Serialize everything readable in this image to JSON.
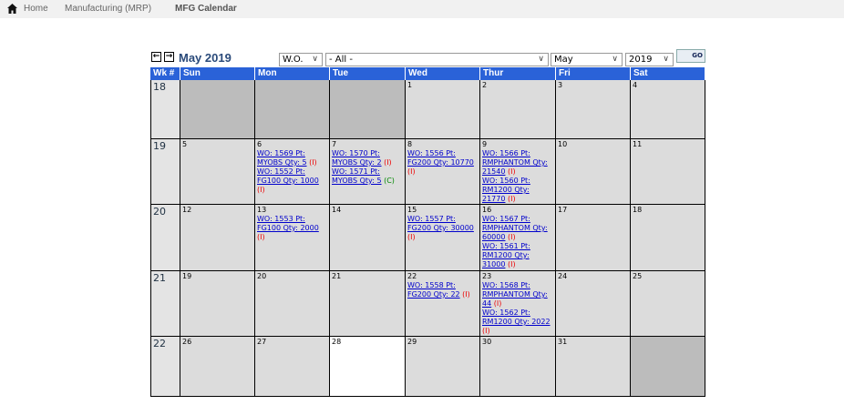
{
  "breadcrumb": [
    {
      "label": "Home",
      "icon": "home-icon"
    },
    {
      "label": "Manufacturing (MRP)"
    },
    {
      "label": "MFG Calendar"
    }
  ],
  "toolbar": {
    "title": "May 2019",
    "prev_icon": "arrow-left-icon",
    "next_icon": "arrow-right-icon",
    "type_select": "W.O.",
    "filter_select": "- All -",
    "month_select": "May",
    "year_select": "2019",
    "go_label": "GO"
  },
  "columns": [
    "Wk #",
    "Sun",
    "Mon",
    "Tue",
    "Wed",
    "Thur",
    "Fri",
    "Sat"
  ],
  "colors": {
    "header": "#2a62d8",
    "in_month": "#dcdcdc",
    "out_month": "#bcbcbc",
    "today": "#ffffff",
    "status_I": "#e00000",
    "status_C": "#008800"
  },
  "weeks": [
    {
      "wk": "18",
      "days": [
        {
          "d": "",
          "s": "out"
        },
        {
          "d": "",
          "s": "out"
        },
        {
          "d": "",
          "s": "out"
        },
        {
          "d": "1"
        },
        {
          "d": "2"
        },
        {
          "d": "3"
        },
        {
          "d": "4"
        }
      ]
    },
    {
      "wk": "19",
      "days": [
        {
          "d": "5"
        },
        {
          "d": "6",
          "orders": [
            {
              "text": "WO: 1569 Pt: MYOBS Qty: 5",
              "status": "I"
            },
            {
              "text": "WO: 1552 Pt: FG100 Qty: 1000",
              "status": "I"
            }
          ]
        },
        {
          "d": "7",
          "orders": [
            {
              "text": "WO: 1570 Pt: MYOBS Qty: 2",
              "status": "I"
            },
            {
              "text": "WO: 1571 Pt: MYOBS Qty: 5",
              "status": "C"
            }
          ]
        },
        {
          "d": "8",
          "orders": [
            {
              "text": "WO: 1556 Pt: FG200 Qty: 10770",
              "status": "I"
            }
          ]
        },
        {
          "d": "9",
          "orders": [
            {
              "text": "WO: 1566 Pt: RMPHANTOM Qty: 21540",
              "status": "I"
            },
            {
              "text": "WO: 1560 Pt: RM1200 Qty: 21770",
              "status": "I"
            }
          ]
        },
        {
          "d": "10"
        },
        {
          "d": "11"
        }
      ]
    },
    {
      "wk": "20",
      "days": [
        {
          "d": "12"
        },
        {
          "d": "13",
          "orders": [
            {
              "text": "WO: 1553 Pt: FG100 Qty: 2000",
              "status": "I"
            }
          ]
        },
        {
          "d": "14"
        },
        {
          "d": "15",
          "orders": [
            {
              "text": "WO: 1557 Pt: FG200 Qty: 30000",
              "status": "I"
            }
          ]
        },
        {
          "d": "16",
          "orders": [
            {
              "text": "WO: 1567 Pt: RMPHANTOM Qty: 60000",
              "status": "I"
            },
            {
              "text": "WO: 1561 Pt: RM1200 Qty: 31000",
              "status": "I"
            }
          ]
        },
        {
          "d": "17"
        },
        {
          "d": "18"
        }
      ]
    },
    {
      "wk": "21",
      "days": [
        {
          "d": "19"
        },
        {
          "d": "20"
        },
        {
          "d": "21"
        },
        {
          "d": "22",
          "orders": [
            {
              "text": "WO: 1558 Pt: FG200 Qty: 22",
              "status": "I"
            }
          ]
        },
        {
          "d": "23",
          "orders": [
            {
              "text": "WO: 1568 Pt: RMPHANTOM Qty: 44",
              "status": "I"
            },
            {
              "text": "WO: 1562 Pt: RM1200 Qty: 2022",
              "status": "I"
            }
          ]
        },
        {
          "d": "24"
        },
        {
          "d": "25"
        }
      ]
    },
    {
      "wk": "22",
      "days": [
        {
          "d": "26"
        },
        {
          "d": "27"
        },
        {
          "d": "28",
          "s": "today"
        },
        {
          "d": "29"
        },
        {
          "d": "30"
        },
        {
          "d": "31"
        },
        {
          "d": "",
          "s": "out"
        }
      ]
    }
  ]
}
